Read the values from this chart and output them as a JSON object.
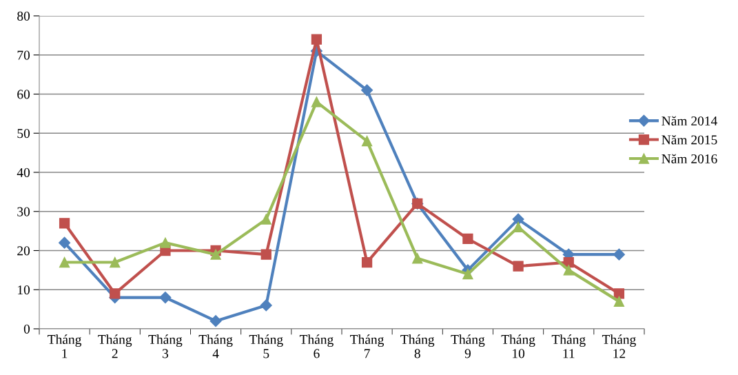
{
  "chart_data": {
    "type": "line",
    "categories": [
      "Tháng\n1",
      "Tháng\n2",
      "Tháng\n3",
      "Tháng\n4",
      "Tháng\n5",
      "Tháng\n6",
      "Tháng\n7",
      "Tháng\n8",
      "Tháng\n9",
      "Tháng\n10",
      "Tháng\n11",
      "Tháng\n12"
    ],
    "series": [
      {
        "name": "Năm 2014",
        "color": "#4f81bd",
        "marker": "diamond",
        "values": [
          22,
          8,
          8,
          2,
          6,
          71,
          61,
          32,
          15,
          28,
          19,
          19
        ]
      },
      {
        "name": "Năm 2015",
        "color": "#c0504d",
        "marker": "square",
        "values": [
          27,
          9,
          20,
          20,
          19,
          74,
          17,
          32,
          23,
          16,
          17,
          9
        ]
      },
      {
        "name": "Năm 2016",
        "color": "#9bbb59",
        "marker": "triangle",
        "values": [
          17,
          17,
          22,
          19,
          28,
          58,
          48,
          18,
          14,
          26,
          15,
          7
        ]
      }
    ],
    "ylim": [
      0,
      80
    ],
    "yticks": [
      0,
      10,
      20,
      30,
      40,
      50,
      60,
      70,
      80
    ],
    "grid": "y",
    "legend": "right",
    "line_style": "solid"
  }
}
